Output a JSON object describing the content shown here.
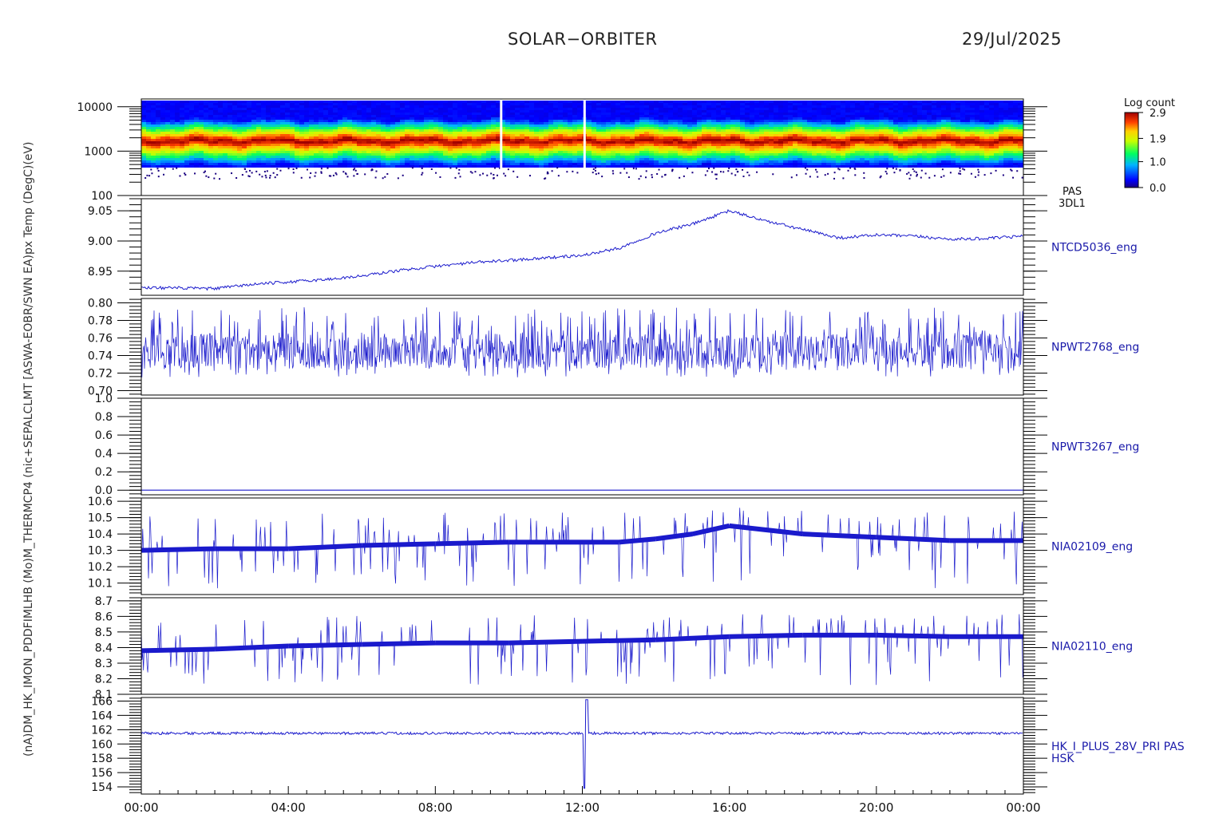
{
  "header": {
    "title": "SOLAR−ORBITER",
    "date": "29/Jul/2025"
  },
  "colors": {
    "trace": "#1a1acc",
    "axis": "#000000",
    "label": "#1a1aaa"
  },
  "side_label": "(nA)DM_HK_IMON_PDDFIMLHB (Mo)M_THERMCP4 (nic+SEPALCLMT [ASWA-EOBR/SWN EA)px Temp (DegC)(eV)",
  "chart_data": [
    {
      "type": "heatmap",
      "panel": "pas",
      "ylabel": "(eV)",
      "yscale": "log",
      "ylim": [
        100,
        15000
      ],
      "yticks": [
        100,
        1000,
        10000
      ],
      "tick_labels": [
        "100",
        "1000",
        "10000"
      ],
      "band_peak_eV": 1800,
      "data_gaps_h": [
        9.78,
        12.05
      ],
      "colorbar": {
        "title": "Log count",
        "min": 0.0,
        "max": 2.9,
        "ticks": [
          2.9,
          1.9,
          1.0,
          0.0
        ],
        "tick_labels": [
          "2.9",
          "1.9",
          "1.0",
          "0.0"
        ]
      },
      "labels": [
        "PAS",
        "3DL1"
      ]
    },
    {
      "type": "line",
      "panel": "ntcd",
      "name": "NTCD5036_eng",
      "ylim": [
        8.91,
        9.07
      ],
      "yticks": [
        8.95,
        9.0,
        9.05
      ],
      "tick_labels": [
        "8.95",
        "9.00",
        "9.05"
      ],
      "x": [
        0,
        1,
        2,
        3,
        4,
        5,
        6,
        7,
        8,
        9,
        10,
        11,
        12,
        13,
        14,
        15,
        16,
        17,
        18,
        19,
        20,
        21,
        22,
        23,
        24
      ],
      "y": [
        8.923,
        8.922,
        8.921,
        8.928,
        8.932,
        8.936,
        8.942,
        8.951,
        8.958,
        8.964,
        8.968,
        8.972,
        8.976,
        8.988,
        9.013,
        9.028,
        9.05,
        9.033,
        9.019,
        9.005,
        9.01,
        9.008,
        9.003,
        9.004,
        9.008
      ],
      "noise": 0.0025
    },
    {
      "type": "line",
      "panel": "npwt2768",
      "name": "NPWT2768_eng",
      "ylim": [
        0.695,
        0.805
      ],
      "yticks": [
        0.7,
        0.72,
        0.74,
        0.76,
        0.78,
        0.8
      ],
      "tick_labels": [
        "0.70",
        "0.72",
        "0.74",
        "0.76",
        "0.78",
        "0.80"
      ],
      "mean": 0.745,
      "spread": [
        0.715,
        0.795
      ]
    },
    {
      "type": "line",
      "panel": "npwt3267",
      "name": "NPWT3267_eng",
      "ylim": [
        -0.05,
        1.0
      ],
      "yticks": [
        0.0,
        0.2,
        0.4,
        0.6,
        0.8,
        1.0
      ],
      "tick_labels": [
        "0.0",
        "0.2",
        "0.4",
        "0.6",
        "0.8",
        "1.0"
      ],
      "value": 0.0
    },
    {
      "type": "line",
      "panel": "nia02109",
      "name": "NIA02109_eng",
      "ylim": [
        10.03,
        10.62
      ],
      "yticks": [
        10.1,
        10.2,
        10.3,
        10.4,
        10.5,
        10.6
      ],
      "tick_labels": [
        "10.1",
        "10.2",
        "10.3",
        "10.4",
        "10.5",
        "10.6"
      ],
      "levels": [
        10.3,
        10.31,
        10.31,
        10.33,
        10.34,
        10.35,
        10.35,
        10.35,
        10.37,
        10.4,
        10.45,
        10.4,
        10.38,
        10.36,
        10.36
      ],
      "level_x": [
        0,
        2,
        4,
        6,
        8,
        10,
        12,
        13,
        14,
        15,
        16,
        18,
        20,
        22,
        24
      ],
      "spike_range": [
        10.06,
        10.59
      ]
    },
    {
      "type": "line",
      "panel": "nia02110",
      "name": "NIA02110_eng",
      "ylim": [
        8.1,
        8.72
      ],
      "yticks": [
        8.1,
        8.2,
        8.3,
        8.4,
        8.5,
        8.6,
        8.7
      ],
      "tick_labels": [
        "8.1",
        "8.2",
        "8.3",
        "8.4",
        "8.5",
        "8.6",
        "8.7"
      ],
      "levels": [
        8.38,
        8.39,
        8.41,
        8.42,
        8.43,
        8.43,
        8.44,
        8.45,
        8.47,
        8.48,
        8.48,
        8.47,
        8.47
      ],
      "level_x": [
        0,
        2,
        4,
        6,
        8,
        10,
        12,
        14,
        16,
        18,
        20,
        22,
        24
      ],
      "spike_range": [
        8.16,
        8.66
      ]
    },
    {
      "type": "line",
      "panel": "hk",
      "name": "HK_I_PLUS_28V_PRI PAS",
      "name2": "HSK",
      "ylim": [
        153,
        166.5
      ],
      "yticks": [
        154,
        156,
        158,
        160,
        162,
        164,
        166
      ],
      "tick_labels": [
        "154",
        "156",
        "158",
        "160",
        "162",
        "164",
        "166"
      ],
      "baseline": 161.5,
      "spike": {
        "x": 12.05,
        "low": 153.8,
        "high": 166.2
      }
    }
  ],
  "xaxis": {
    "range": [
      0,
      24
    ],
    "ticks": [
      0,
      4,
      8,
      12,
      16,
      20,
      24
    ],
    "tick_labels": [
      "00:00",
      "04:00",
      "08:00",
      "12:00",
      "16:00",
      "20:00",
      "00:00"
    ]
  }
}
